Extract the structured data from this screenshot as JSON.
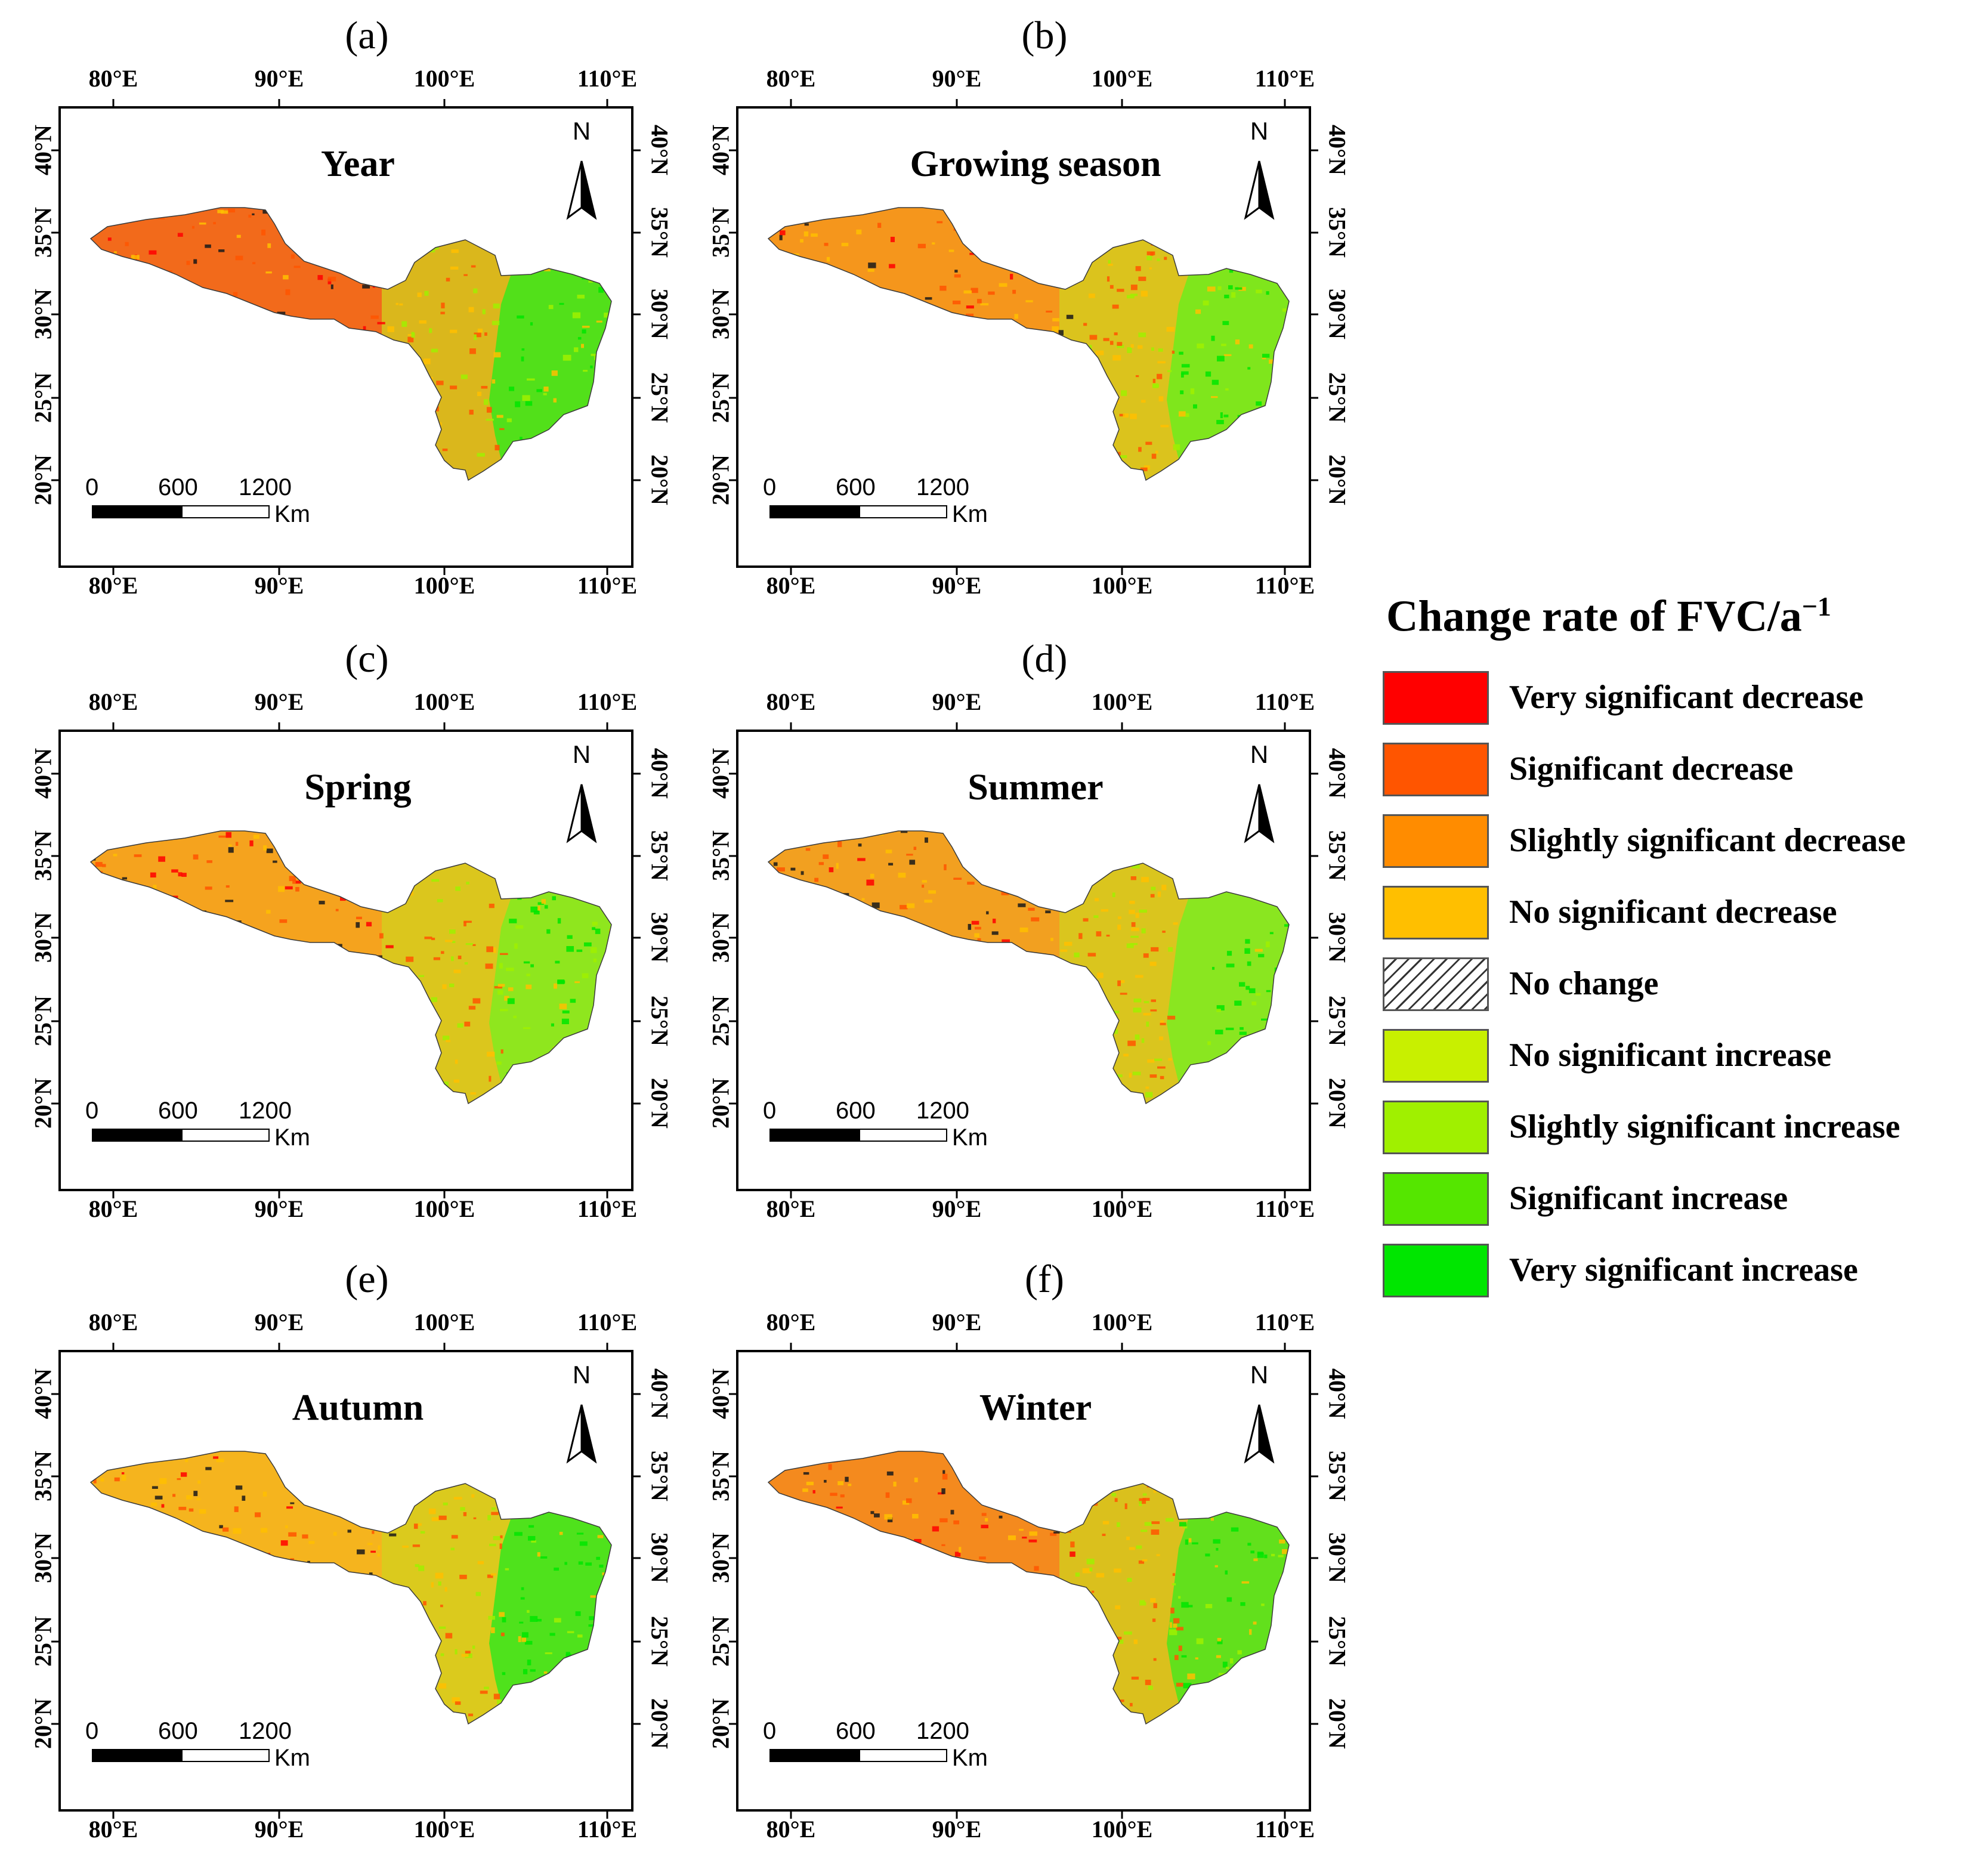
{
  "legend": {
    "title": "Change rate of FVC/a",
    "title_superscript": "−1",
    "items": [
      {
        "label": "Very significant decrease",
        "color": "#ff0000",
        "pattern": ""
      },
      {
        "label": "Significant decrease",
        "color": "#ff5500",
        "pattern": ""
      },
      {
        "label": "Slightly significant decrease",
        "color": "#ff8c00",
        "pattern": ""
      },
      {
        "label": "No significant decrease",
        "color": "#ffbf00",
        "pattern": ""
      },
      {
        "label": "No change",
        "color": "#ffffff",
        "pattern": "hatch"
      },
      {
        "label": "No significant increase",
        "color": "#c8f000",
        "pattern": ""
      },
      {
        "label": "Slightly significant increase",
        "color": "#a0f000",
        "pattern": ""
      },
      {
        "label": "Significant increase",
        "color": "#55e600",
        "pattern": ""
      },
      {
        "label": "Very significant increase",
        "color": "#00e600",
        "pattern": ""
      }
    ]
  },
  "axes": {
    "longitude_ticks": [
      "80°E",
      "90°E",
      "100°E",
      "110°E"
    ],
    "latitude_ticks": [
      "40°N",
      "35°N",
      "30°N",
      "25°N",
      "20°N"
    ]
  },
  "north_label": "N",
  "scale_bar": {
    "labels": [
      "0",
      "600",
      "1200"
    ],
    "unit": "Km"
  },
  "panels": [
    {
      "label": "(a)",
      "title": "Year",
      "dominant_west": "#f26a1b",
      "dominant_east": "#52e01a"
    },
    {
      "label": "(b)",
      "title": "Growing season",
      "dominant_west": "#f5961c",
      "dominant_east": "#7fe61c"
    },
    {
      "label": "(c)",
      "title": "Spring",
      "dominant_west": "#f5a31e",
      "dominant_east": "#8fe61e"
    },
    {
      "label": "(d)",
      "title": "Summer",
      "dominant_west": "#f2a020",
      "dominant_east": "#8ae620"
    },
    {
      "label": "(e)",
      "title": "Autumn",
      "dominant_west": "#f5b41e",
      "dominant_east": "#4fe21c"
    },
    {
      "label": "(f)",
      "title": "Winter",
      "dominant_west": "#f48a1e",
      "dominant_east": "#62e01c"
    }
  ]
}
